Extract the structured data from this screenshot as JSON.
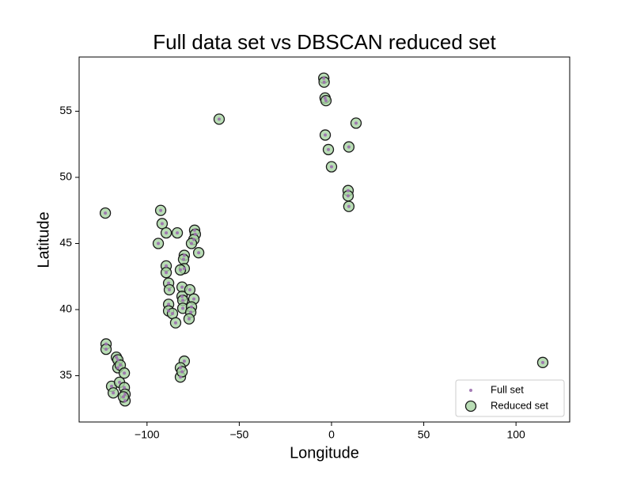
{
  "chart_data": {
    "type": "scatter",
    "title": "Full data set vs DBSCAN reduced set",
    "xlabel": "Longitude",
    "ylabel": "Latitude",
    "xlim": [
      -136.8,
      129.1
    ],
    "ylim": [
      31.5,
      59.1
    ],
    "xticks": [
      {
        "value": -100,
        "label": "−100"
      },
      {
        "value": -50,
        "label": "−50"
      },
      0,
      50,
      100
    ],
    "yticks": [
      35,
      40,
      45,
      50,
      55
    ],
    "legend": "lower right",
    "series": [
      {
        "name": "Full set",
        "color": "#9b6fae",
        "x": [
          114.5,
          -60.9,
          -122.6,
          -4.2,
          -4.0,
          -3.5,
          -3.0,
          13.3,
          -3.4,
          -1.7,
          9.4,
          0.0,
          9.0,
          9.0,
          9.4,
          -92.6,
          -91.8,
          -89.6,
          -83.6,
          -93.9,
          -74.2,
          -73.8,
          -74.6,
          -75.9,
          -72.0,
          -79.8,
          -80.2,
          -79.8,
          -89.6,
          -89.6,
          -81.9,
          -88.3,
          -87.9,
          -81.0,
          -81.0,
          -76.8,
          -74.6,
          -80.6,
          -80.6,
          -88.3,
          -88.3,
          -86.2,
          -75.9,
          -76.3,
          -77.2,
          -84.5,
          -79.8,
          -81.9,
          -81.9,
          -81.0,
          -122.2,
          -122.2,
          -116.6,
          -115.8,
          -115.8,
          -114.5,
          -112.3,
          -119.2,
          -118.3,
          -114.9,
          -112.3,
          -111.9,
          -111.9,
          -112.8
        ],
        "values": [
          36.0,
          54.4,
          47.3,
          57.5,
          57.2,
          56.0,
          55.8,
          54.1,
          53.2,
          52.1,
          52.3,
          50.8,
          49.0,
          48.6,
          47.8,
          47.5,
          46.5,
          45.8,
          45.8,
          45.0,
          46.0,
          45.7,
          45.3,
          45.0,
          44.3,
          44.1,
          43.8,
          43.1,
          43.3,
          42.8,
          43.0,
          42.0,
          41.5,
          41.7,
          41.0,
          41.5,
          40.8,
          40.7,
          40.1,
          40.4,
          39.9,
          39.7,
          40.2,
          39.8,
          39.3,
          39.0,
          36.1,
          35.6,
          34.9,
          35.3,
          37.4,
          37.0,
          36.4,
          36.2,
          35.6,
          35.8,
          35.2,
          34.2,
          33.7,
          34.5,
          34.1,
          33.6,
          33.1,
          33.4
        ]
      },
      {
        "name": "Reduced set",
        "color": "#a8d5a2",
        "x": [
          114.5,
          -60.9,
          -122.6,
          -4.2,
          -4.0,
          -3.5,
          -3.0,
          13.3,
          -3.4,
          -1.7,
          9.4,
          0.0,
          9.0,
          9.0,
          9.4,
          -92.6,
          -91.8,
          -89.6,
          -83.6,
          -93.9,
          -74.2,
          -73.8,
          -74.6,
          -75.9,
          -72.0,
          -79.8,
          -80.2,
          -79.8,
          -89.6,
          -89.6,
          -81.9,
          -88.3,
          -87.9,
          -81.0,
          -81.0,
          -76.8,
          -74.6,
          -80.6,
          -80.6,
          -88.3,
          -88.3,
          -86.2,
          -75.9,
          -76.3,
          -77.2,
          -84.5,
          -79.8,
          -81.9,
          -81.9,
          -81.0,
          -122.2,
          -122.2,
          -116.6,
          -115.8,
          -115.8,
          -114.5,
          -112.3,
          -119.2,
          -118.3,
          -114.9,
          -112.3,
          -111.9,
          -111.9,
          -112.8
        ],
        "values": [
          36.0,
          54.4,
          47.3,
          57.5,
          57.2,
          56.0,
          55.8,
          54.1,
          53.2,
          52.1,
          52.3,
          50.8,
          49.0,
          48.6,
          47.8,
          47.5,
          46.5,
          45.8,
          45.8,
          45.0,
          46.0,
          45.7,
          45.3,
          45.0,
          44.3,
          44.1,
          43.8,
          43.1,
          43.3,
          42.8,
          43.0,
          42.0,
          41.5,
          41.7,
          41.0,
          41.5,
          40.8,
          40.7,
          40.1,
          40.4,
          39.9,
          39.7,
          40.2,
          39.8,
          39.3,
          39.0,
          36.1,
          35.6,
          34.9,
          35.3,
          37.4,
          37.0,
          36.4,
          36.2,
          35.6,
          35.8,
          35.2,
          34.2,
          33.7,
          34.5,
          34.1,
          33.6,
          33.1,
          33.4
        ]
      }
    ]
  }
}
